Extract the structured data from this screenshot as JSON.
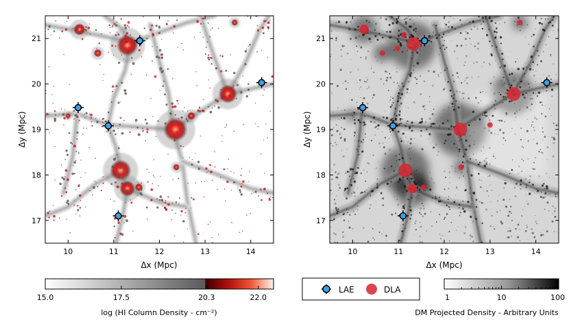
{
  "chart_data": [
    {
      "type": "scatter",
      "panel": "left",
      "xlabel": "Δx (Mpc)",
      "ylabel": "Δy (Mpc)",
      "xlim": [
        9.5,
        14.5
      ],
      "ylim": [
        16.5,
        21.5
      ],
      "xticks": [
        10,
        11,
        12,
        13,
        14
      ],
      "yticks": [
        17,
        18,
        19,
        20,
        21
      ],
      "background": "HI column density map",
      "series": [
        {
          "name": "LAE",
          "points": [
            {
              "x": 11.57,
              "y": 20.95
            },
            {
              "x": 14.24,
              "y": 20.03
            },
            {
              "x": 10.22,
              "y": 19.48
            },
            {
              "x": 10.88,
              "y": 19.08
            },
            {
              "x": 11.1,
              "y": 17.1
            }
          ]
        }
      ]
    },
    {
      "type": "scatter",
      "panel": "right",
      "xlabel": "Δx (Mpc)",
      "ylabel": "Δy (Mpc)",
      "xlim": [
        9.5,
        14.5
      ],
      "ylim": [
        16.5,
        21.5
      ],
      "xticks": [
        10,
        11,
        12,
        13,
        14
      ],
      "yticks": [
        17,
        18,
        19,
        20,
        21
      ],
      "background": "DM projected density map",
      "series": [
        {
          "name": "LAE",
          "points": [
            {
              "x": 11.57,
              "y": 20.95
            },
            {
              "x": 14.24,
              "y": 20.03
            },
            {
              "x": 10.22,
              "y": 19.48
            },
            {
              "x": 10.88,
              "y": 19.08
            },
            {
              "x": 11.1,
              "y": 17.1
            }
          ]
        },
        {
          "name": "DLA",
          "points": [
            {
              "x": 10.25,
              "y": 21.2,
              "size": 2
            },
            {
              "x": 10.65,
              "y": 20.68,
              "size": 1
            },
            {
              "x": 10.98,
              "y": 20.78,
              "size": 1
            },
            {
              "x": 11.12,
              "y": 21.08,
              "size": 1
            },
            {
              "x": 11.33,
              "y": 20.88,
              "size": 3
            },
            {
              "x": 13.65,
              "y": 21.35,
              "size": 1
            },
            {
              "x": 13.52,
              "y": 19.78,
              "size": 3
            },
            {
              "x": 12.35,
              "y": 19.0,
              "size": 3
            },
            {
              "x": 13.0,
              "y": 19.1,
              "size": 1
            },
            {
              "x": 11.15,
              "y": 18.1,
              "size": 3
            },
            {
              "x": 12.37,
              "y": 18.17,
              "size": 1
            },
            {
              "x": 11.3,
              "y": 17.7,
              "size": 2
            },
            {
              "x": 11.55,
              "y": 17.73,
              "size": 1
            }
          ]
        }
      ]
    }
  ],
  "colorbars": [
    {
      "label": "log (HI Column Density - cm⁻²)",
      "ticks": [
        "15.0",
        "17.5",
        "20.3",
        "22.0"
      ],
      "range": [
        15.0,
        22.5
      ],
      "tick_values": [
        15.0,
        17.5,
        20.3,
        22.0
      ]
    },
    {
      "label": "DM Projected Density - Arbitrary Units",
      "ticks": [
        "1",
        "10",
        "100"
      ],
      "tick_values": [
        1,
        10,
        100
      ]
    }
  ],
  "legend": {
    "items": [
      {
        "label": "LAE"
      },
      {
        "label": "DLA"
      }
    ]
  },
  "colors": {
    "lae": "#3aa0ec",
    "dla": "#d62430",
    "hi_low": "#ffffff",
    "hi_mid": "#555555",
    "hi_high": "#cc1010"
  }
}
